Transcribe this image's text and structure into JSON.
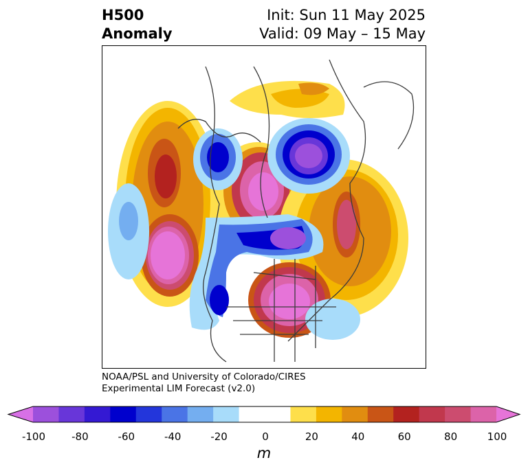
{
  "title": {
    "left_line1": "H500",
    "left_line2": "Anomaly",
    "right_line1": "Init: Sun 11 May 2025",
    "right_line2": "Valid: 09 May – 15 May"
  },
  "credit": {
    "line1": "NOAA/PSL and University of Colorado/CIRES",
    "line2": "Experimental LIM Forecast (v2.0)"
  },
  "colorbar": {
    "unit": "m",
    "ticks": [
      "-100",
      "-80",
      "-60",
      "-40",
      "-20",
      "0",
      "20",
      "40",
      "60",
      "80",
      "100"
    ],
    "levels": [
      -100,
      -90,
      -80,
      -70,
      -60,
      -50,
      -40,
      -30,
      -20,
      -10,
      10,
      20,
      30,
      40,
      50,
      60,
      70,
      80,
      90,
      100
    ],
    "colors": [
      "#d870e6",
      "#9c50dc",
      "#6836d9",
      "#3419d3",
      "#0000cd",
      "#2336db",
      "#4a74e6",
      "#74aef0",
      "#a8dcfa",
      "#ffffff",
      "#ffffff",
      "#fedf4b",
      "#f3b500",
      "#e18d10",
      "#c95516",
      "#b3221f",
      "#c1384d",
      "#cc4c6f",
      "#dc63a9",
      "#e674d8"
    ]
  }
}
